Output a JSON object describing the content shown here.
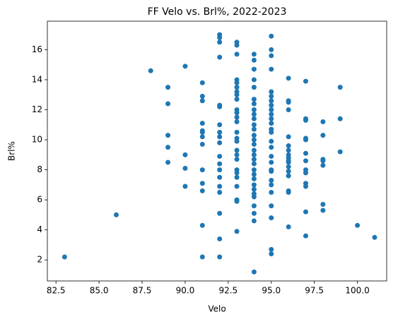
{
  "chart_data": {
    "type": "scatter",
    "title": "FF Velo vs. Brl%, 2022-2023",
    "x_label": "Velo",
    "y_label": "Brl%",
    "color": "#1f77b4",
    "x": [
      83,
      86,
      88,
      89,
      89,
      89,
      89,
      89,
      90,
      90,
      90,
      90,
      91,
      91,
      91,
      91,
      91,
      91,
      91,
      91,
      91,
      91,
      91,
      91,
      91,
      92,
      92,
      92,
      92,
      92,
      92,
      92,
      92,
      92,
      92,
      92,
      92,
      92,
      92,
      92,
      92,
      92,
      92,
      92,
      93,
      93,
      93,
      93,
      93,
      93,
      93,
      93,
      93,
      93,
      93,
      93,
      93,
      93,
      93,
      93,
      93,
      93,
      93,
      93,
      93,
      93,
      93,
      93,
      93,
      93,
      94,
      94,
      94,
      94,
      94,
      94,
      94,
      94,
      94,
      94,
      94,
      94,
      94,
      94,
      94,
      94,
      94,
      94,
      94,
      94,
      94,
      94,
      94,
      94,
      94,
      94,
      94,
      94,
      94,
      94,
      95,
      95,
      95,
      95,
      95,
      95,
      95,
      95,
      95,
      95,
      95,
      95,
      95,
      95,
      95,
      95,
      95,
      95,
      95,
      95,
      95,
      95,
      95,
      95,
      95,
      95,
      95,
      96,
      96,
      96,
      96,
      96,
      96,
      96,
      96,
      96,
      96,
      96,
      96,
      96,
      96,
      96,
      96,
      96,
      97,
      97,
      97,
      97,
      97,
      97,
      97,
      97,
      97,
      97,
      97,
      97,
      97,
      98,
      98,
      98,
      98,
      98,
      98,
      98,
      99,
      99,
      99,
      100,
      101
    ],
    "values": [
      2.2,
      5.0,
      14.6,
      13.5,
      12.4,
      10.3,
      9.5,
      8.5,
      14.9,
      9.0,
      8.1,
      6.9,
      13.8,
      12.9,
      12.6,
      11.1,
      10.6,
      10.5,
      10.2,
      9.7,
      8.0,
      7.1,
      6.6,
      4.3,
      2.2,
      17.0,
      16.8,
      16.5,
      15.5,
      12.3,
      12.2,
      11.0,
      10.5,
      10.2,
      9.8,
      8.9,
      8.4,
      8.0,
      7.5,
      6.9,
      6.5,
      5.1,
      3.4,
      2.2,
      16.5,
      16.3,
      15.7,
      14.0,
      13.8,
      13.5,
      13.2,
      13.0,
      12.7,
      12.0,
      11.8,
      11.5,
      11.2,
      10.5,
      10.1,
      9.9,
      9.3,
      9.0,
      8.7,
      8.0,
      7.8,
      7.5,
      6.9,
      6.0,
      5.9,
      3.9,
      15.7,
      15.3,
      14.7,
      14.0,
      13.5,
      12.7,
      12.4,
      12.0,
      11.7,
      11.4,
      11.0,
      10.7,
      10.3,
      10.0,
      9.7,
      9.3,
      9.0,
      8.7,
      8.4,
      8.0,
      7.7,
      7.4,
      7.0,
      6.7,
      6.4,
      6.2,
      5.6,
      5.1,
      4.6,
      1.2,
      16.9,
      16.0,
      15.6,
      14.7,
      13.2,
      12.9,
      12.6,
      12.3,
      12.0,
      11.7,
      11.4,
      11.1,
      10.7,
      10.5,
      9.9,
      9.5,
      8.9,
      8.5,
      8.0,
      7.9,
      7.3,
      7.0,
      6.5,
      5.6,
      4.8,
      2.7,
      2.4,
      14.1,
      12.6,
      12.5,
      12.0,
      10.2,
      9.6,
      9.3,
      9.0,
      8.8,
      8.6,
      8.5,
      8.2,
      7.9,
      7.6,
      6.6,
      6.5,
      4.2,
      13.9,
      11.4,
      11.3,
      10.1,
      10.0,
      9.1,
      8.6,
      8.0,
      7.8,
      7.1,
      6.9,
      5.2,
      3.6,
      11.2,
      10.3,
      8.7,
      8.6,
      8.3,
      5.7,
      5.3,
      13.5,
      11.4,
      9.2,
      4.3,
      3.5
    ],
    "xlim": [
      82.0,
      101.7
    ],
    "ylim": [
      0.6,
      17.9
    ],
    "xticks": [
      {
        "value": 82.5,
        "label": "82.5"
      },
      {
        "value": 85,
        "label": "85.0"
      },
      {
        "value": 87.5,
        "label": "87.5"
      },
      {
        "value": 90,
        "label": "90.0"
      },
      {
        "value": 92.5,
        "label": "92.5"
      },
      {
        "value": 95,
        "label": "95.0"
      },
      {
        "value": 97.5,
        "label": "97.5"
      },
      {
        "value": 100,
        "label": "100.0"
      }
    ],
    "yticks": [
      2,
      4,
      6,
      8,
      10,
      12,
      14,
      16
    ]
  }
}
